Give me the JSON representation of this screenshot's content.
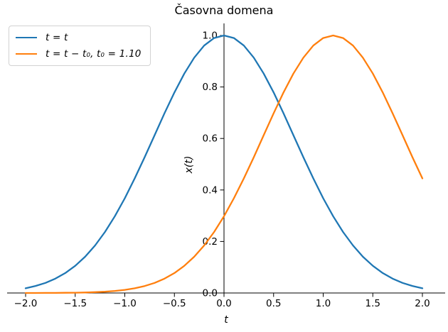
{
  "figure": {
    "title": "Časovna domena",
    "xlabel": "t",
    "ylabel": "x(t)"
  },
  "legend": {
    "entries": [
      {
        "label": "t = t",
        "color": "#1f77b4"
      },
      {
        "label": "t = t − t₀,  t₀ = 1.10",
        "color": "#ff7f0e"
      }
    ]
  },
  "chart_data": {
    "type": "line",
    "title": "Časovna domena",
    "xlabel": "t",
    "ylabel": "x(t)",
    "xlim": [
      -2.19,
      2.23
    ],
    "ylim": [
      0.0,
      1.05
    ],
    "grid": false,
    "legend_position": "upper left",
    "axes_style": {
      "y_spine_at_x": 0,
      "x_spine_at_y": 0,
      "top_spine": false,
      "right_spine": false
    },
    "x_ticks": {
      "values": [
        -2.0,
        -1.5,
        -1.0,
        -0.5,
        0.0,
        0.5,
        1.0,
        1.5,
        2.0
      ],
      "labels": [
        "−2.0",
        "−1.5",
        "−1.0",
        "−0.5",
        "0.0",
        "0.5",
        "1.0",
        "1.5",
        "2.0"
      ]
    },
    "y_ticks": {
      "values": [
        0.0,
        0.2,
        0.4,
        0.6,
        0.8,
        1.0
      ],
      "labels": [
        "0.0",
        "0.2",
        "0.4",
        "0.6",
        "0.8",
        "1.0"
      ]
    },
    "x": [
      -2.0,
      -1.9,
      -1.8,
      -1.7,
      -1.6,
      -1.5,
      -1.4,
      -1.3,
      -1.2,
      -1.1,
      -1.0,
      -0.9,
      -0.8,
      -0.7,
      -0.6,
      -0.5,
      -0.4,
      -0.3,
      -0.2,
      -0.1,
      0.0,
      0.1,
      0.2,
      0.3,
      0.4,
      0.5,
      0.6,
      0.7,
      0.8,
      0.9,
      1.0,
      1.1,
      1.2,
      1.3,
      1.4,
      1.5,
      1.6,
      1.7,
      1.8,
      1.9,
      2.0
    ],
    "series": [
      {
        "name": "t = t",
        "formula": "x(t) = exp(−t²)",
        "color": "#1f77b4",
        "values": [
          0.0183,
          0.0273,
          0.0392,
          0.0556,
          0.0773,
          0.1054,
          0.1409,
          0.1845,
          0.2369,
          0.2982,
          0.3679,
          0.4449,
          0.5273,
          0.6126,
          0.6977,
          0.7788,
          0.8521,
          0.9139,
          0.9608,
          0.99,
          1.0,
          0.99,
          0.9608,
          0.9139,
          0.8521,
          0.7788,
          0.6977,
          0.6126,
          0.5273,
          0.4449,
          0.3679,
          0.2982,
          0.2369,
          0.1845,
          0.1409,
          0.1054,
          0.0773,
          0.0556,
          0.0392,
          0.0273,
          0.0183
        ]
      },
      {
        "name": "t = t − t₀,  t₀ = 1.10",
        "formula": "x(t) = exp(−(t−1.1)²)",
        "color": "#ff7f0e",
        "values": [
          0.0001,
          0.0001,
          0.0002,
          0.0004,
          0.0007,
          0.0012,
          0.0019,
          0.0032,
          0.005,
          0.0079,
          0.0121,
          0.0183,
          0.0271,
          0.0392,
          0.0556,
          0.0773,
          0.1054,
          0.1409,
          0.1845,
          0.2369,
          0.2982,
          0.3679,
          0.4449,
          0.5273,
          0.6126,
          0.6977,
          0.7788,
          0.8521,
          0.9139,
          0.9608,
          0.99,
          1.0,
          0.99,
          0.9608,
          0.9139,
          0.8521,
          0.7788,
          0.6977,
          0.6126,
          0.5273,
          0.4449
        ]
      }
    ]
  }
}
